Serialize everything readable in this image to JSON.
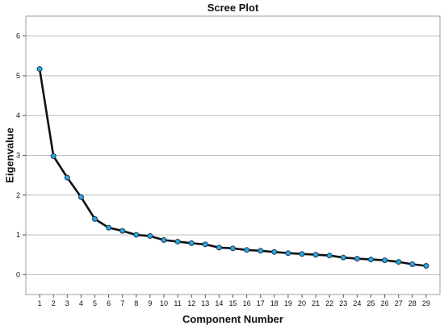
{
  "chart_data": {
    "type": "line",
    "title": "Scree Plot",
    "xlabel": "Component Number",
    "ylabel": "Eigenvalue",
    "x": [
      1,
      2,
      3,
      4,
      5,
      6,
      7,
      8,
      9,
      10,
      11,
      12,
      13,
      14,
      15,
      16,
      17,
      18,
      19,
      20,
      21,
      22,
      23,
      24,
      25,
      26,
      27,
      28,
      29
    ],
    "series": [
      {
        "values": [
          5.17,
          2.98,
          2.44,
          1.95,
          1.4,
          1.18,
          1.1,
          1.0,
          0.97,
          0.87,
          0.83,
          0.79,
          0.76,
          0.68,
          0.66,
          0.62,
          0.6,
          0.57,
          0.54,
          0.52,
          0.5,
          0.48,
          0.43,
          0.4,
          0.38,
          0.36,
          0.32,
          0.26,
          0.22
        ]
      }
    ],
    "xlim": [
      0,
      30
    ],
    "ylim": [
      -0.5,
      6.5
    ],
    "yticks": [
      0,
      1,
      2,
      3,
      4,
      5,
      6
    ],
    "grid": "horizontal",
    "colors": {
      "line": "#111111",
      "marker_fill": "#2aa8e0",
      "marker_stroke": "#1b3a55",
      "grid": "#bdbdbd",
      "frame": "#9e9e9e"
    }
  }
}
